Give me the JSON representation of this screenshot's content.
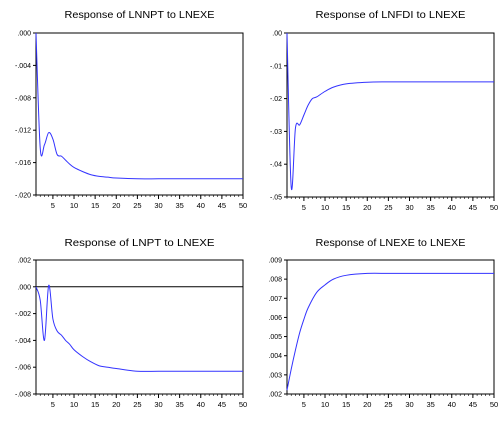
{
  "colors": {
    "line": "#3333ff",
    "axis": "#000000",
    "zero_line": "#000000"
  },
  "chart_data": [
    {
      "type": "line",
      "title": "Response of LNNPT to LNEXE",
      "xlim": [
        1,
        50
      ],
      "ylim": [
        -0.02,
        0.0
      ],
      "x_ticks": [
        "5",
        "10",
        "15",
        "20",
        "25",
        "30",
        "35",
        "40",
        "45",
        "50"
      ],
      "y_ticks": [
        ".000",
        "-.004",
        "-.008",
        "-.012",
        "-.016",
        "-.020"
      ],
      "series": [
        {
          "x": [
            1,
            2,
            3,
            4,
            5,
            6,
            7,
            8,
            9,
            10,
            12,
            14,
            16,
            18,
            20,
            25,
            30,
            35,
            40,
            45,
            50
          ],
          "y": [
            0.0,
            -0.0142,
            -0.0138,
            -0.0123,
            -0.0131,
            -0.015,
            -0.0152,
            -0.0157,
            -0.0162,
            -0.0166,
            -0.0171,
            -0.0175,
            -0.0177,
            -0.0178,
            -0.0179,
            -0.018,
            -0.018,
            -0.018,
            -0.018,
            -0.018,
            -0.018
          ]
        }
      ]
    },
    {
      "type": "line",
      "title": "Response of LNFDI to LNEXE",
      "xlim": [
        1,
        50
      ],
      "ylim": [
        -0.05,
        0.0
      ],
      "x_ticks": [
        "5",
        "10",
        "15",
        "20",
        "25",
        "30",
        "35",
        "40",
        "45",
        "50"
      ],
      "y_ticks": [
        ".00",
        "-.01",
        "-.02",
        "-.03",
        "-.04",
        "-.05"
      ],
      "series": [
        {
          "x": [
            1,
            2,
            3,
            4,
            5,
            6,
            7,
            8,
            10,
            12,
            15,
            20,
            25,
            30,
            35,
            40,
            45,
            50
          ],
          "y": [
            0.0,
            -0.047,
            -0.029,
            -0.028,
            -0.025,
            -0.022,
            -0.02,
            -0.0195,
            -0.0178,
            -0.0165,
            -0.0155,
            -0.015,
            -0.0149,
            -0.0149,
            -0.0149,
            -0.0149,
            -0.0149,
            -0.0149
          ]
        }
      ]
    },
    {
      "type": "line",
      "title": "Response of LNPT to LNEXE",
      "xlim": [
        1,
        50
      ],
      "ylim": [
        -0.008,
        0.002
      ],
      "zero_line": true,
      "x_ticks": [
        "5",
        "10",
        "15",
        "20",
        "25",
        "30",
        "35",
        "40",
        "45",
        "50"
      ],
      "y_ticks": [
        ".002",
        ".000",
        "-.002",
        "-.004",
        "-.006",
        "-.008"
      ],
      "series": [
        {
          "x": [
            1,
            2,
            3,
            4,
            5,
            6,
            7,
            8,
            9,
            10,
            12,
            14,
            16,
            18,
            20,
            25,
            30,
            35,
            40,
            45,
            50
          ],
          "y": [
            0.0,
            -0.001,
            -0.004,
            0.0001,
            -0.0024,
            -0.0033,
            -0.0036,
            -0.004,
            -0.0043,
            -0.0047,
            -0.0052,
            -0.0056,
            -0.0059,
            -0.006,
            -0.0061,
            -0.0063,
            -0.0063,
            -0.0063,
            -0.0063,
            -0.0063,
            -0.0063
          ]
        }
      ]
    },
    {
      "type": "line",
      "title": "Response of LNEXE to LNEXE",
      "xlim": [
        1,
        50
      ],
      "ylim": [
        0.002,
        0.009
      ],
      "x_ticks": [
        "5",
        "10",
        "15",
        "20",
        "25",
        "30",
        "35",
        "40",
        "45",
        "50"
      ],
      "y_ticks": [
        ".009",
        ".008",
        ".007",
        ".006",
        ".005",
        ".004",
        ".003",
        ".002"
      ],
      "series": [
        {
          "x": [
            1,
            2,
            3,
            4,
            5,
            6,
            8,
            10,
            12,
            15,
            20,
            25,
            30,
            35,
            40,
            45,
            50
          ],
          "y": [
            0.0022,
            0.0033,
            0.0043,
            0.0052,
            0.0059,
            0.0065,
            0.0073,
            0.0077,
            0.008,
            0.0082,
            0.0083,
            0.0083,
            0.0083,
            0.0083,
            0.0083,
            0.0083,
            0.0083
          ]
        }
      ]
    }
  ]
}
